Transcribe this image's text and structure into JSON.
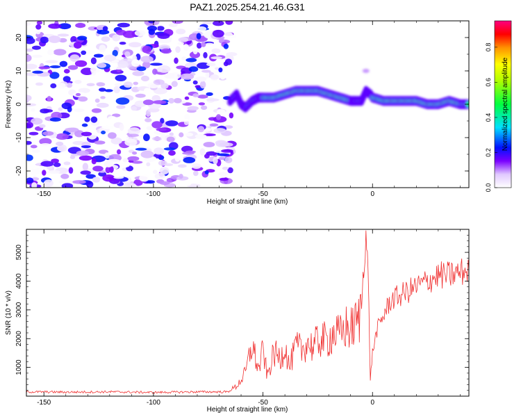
{
  "title": "PAZ1.2025.254.21.46.G31",
  "chart_data": [
    {
      "type": "heatmap",
      "xlabel": "Height of straight line (km)",
      "ylabel": "Frequency (Hz)",
      "xlim": [
        -158,
        44
      ],
      "ylim": [
        -25,
        25
      ],
      "xticks": [
        -150,
        -100,
        -50,
        0
      ],
      "yticks": [
        -20,
        -10,
        0,
        10,
        20
      ],
      "noise_region": {
        "x_range": [
          -158,
          -64
        ],
        "y_range": [
          -25,
          25
        ],
        "amplitude_range": [
          0.0,
          0.25
        ]
      },
      "ridge": {
        "description": "Frequency of peak spectral amplitude vs height",
        "x": [
          -65,
          -62,
          -60,
          -58,
          -55,
          -52,
          -50,
          -45,
          -40,
          -35,
          -30,
          -25,
          -20,
          -15,
          -10,
          -8,
          -5,
          -3,
          -1,
          0,
          5,
          10,
          15,
          20,
          25,
          30,
          35,
          40,
          44
        ],
        "y": [
          1,
          3,
          0,
          -1,
          1,
          2,
          2,
          2,
          3,
          4,
          4,
          4,
          3,
          2,
          1,
          1,
          1,
          4,
          3,
          2,
          1,
          1,
          1,
          1,
          0,
          0,
          1,
          0,
          0
        ],
        "amplitude": [
          0.2,
          0.35,
          0.3,
          0.3,
          0.4,
          0.45,
          0.45,
          0.5,
          0.6,
          0.9,
          0.9,
          0.95,
          0.9,
          0.7,
          0.6,
          0.5,
          0.4,
          0.35,
          0.45,
          0.5,
          0.45,
          0.9,
          0.85,
          0.7,
          0.8,
          0.95,
          0.85,
          0.5,
          0.45
        ]
      },
      "colorbar": {
        "label": "Normalized spectral amplitude",
        "range": [
          0.0,
          0.95
        ],
        "ticks": [
          "0.0",
          "0.2",
          "0.4",
          "0.6",
          "0.8"
        ]
      }
    },
    {
      "type": "line",
      "xlabel": "Height of straight line (km)",
      "ylabel": "SNR (10 * v/v)",
      "xlim": [
        -158,
        44
      ],
      "ylim": [
        0,
        5800
      ],
      "xticks": [
        -150,
        -100,
        -50,
        0
      ],
      "yticks": [
        1000,
        2000,
        3000,
        4000,
        5000
      ],
      "series": [
        {
          "name": "SNR",
          "color": "#f03030",
          "x": [
            -158,
            -140,
            -120,
            -100,
            -80,
            -66,
            -62,
            -58,
            -55,
            -52,
            -50,
            -48,
            -45,
            -42,
            -40,
            -38,
            -35,
            -32,
            -30,
            -27,
            -24,
            -21,
            -18,
            -15,
            -12,
            -10,
            -8,
            -6,
            -5,
            -4,
            -3,
            -2,
            -1,
            0,
            2,
            5,
            8,
            10,
            15,
            20,
            25,
            30,
            35,
            40,
            44
          ],
          "y": [
            150,
            140,
            150,
            130,
            150,
            150,
            350,
            800,
            1800,
            900,
            1600,
            700,
            1500,
            1300,
            1800,
            1000,
            1700,
            1600,
            1900,
            1700,
            2000,
            1900,
            2200,
            2100,
            2400,
            2300,
            2500,
            2700,
            3200,
            4600,
            5700,
            4200,
            600,
            1500,
            2300,
            2800,
            3300,
            3400,
            3600,
            3800,
            4000,
            4200,
            4200,
            4300,
            4400
          ]
        }
      ]
    }
  ]
}
